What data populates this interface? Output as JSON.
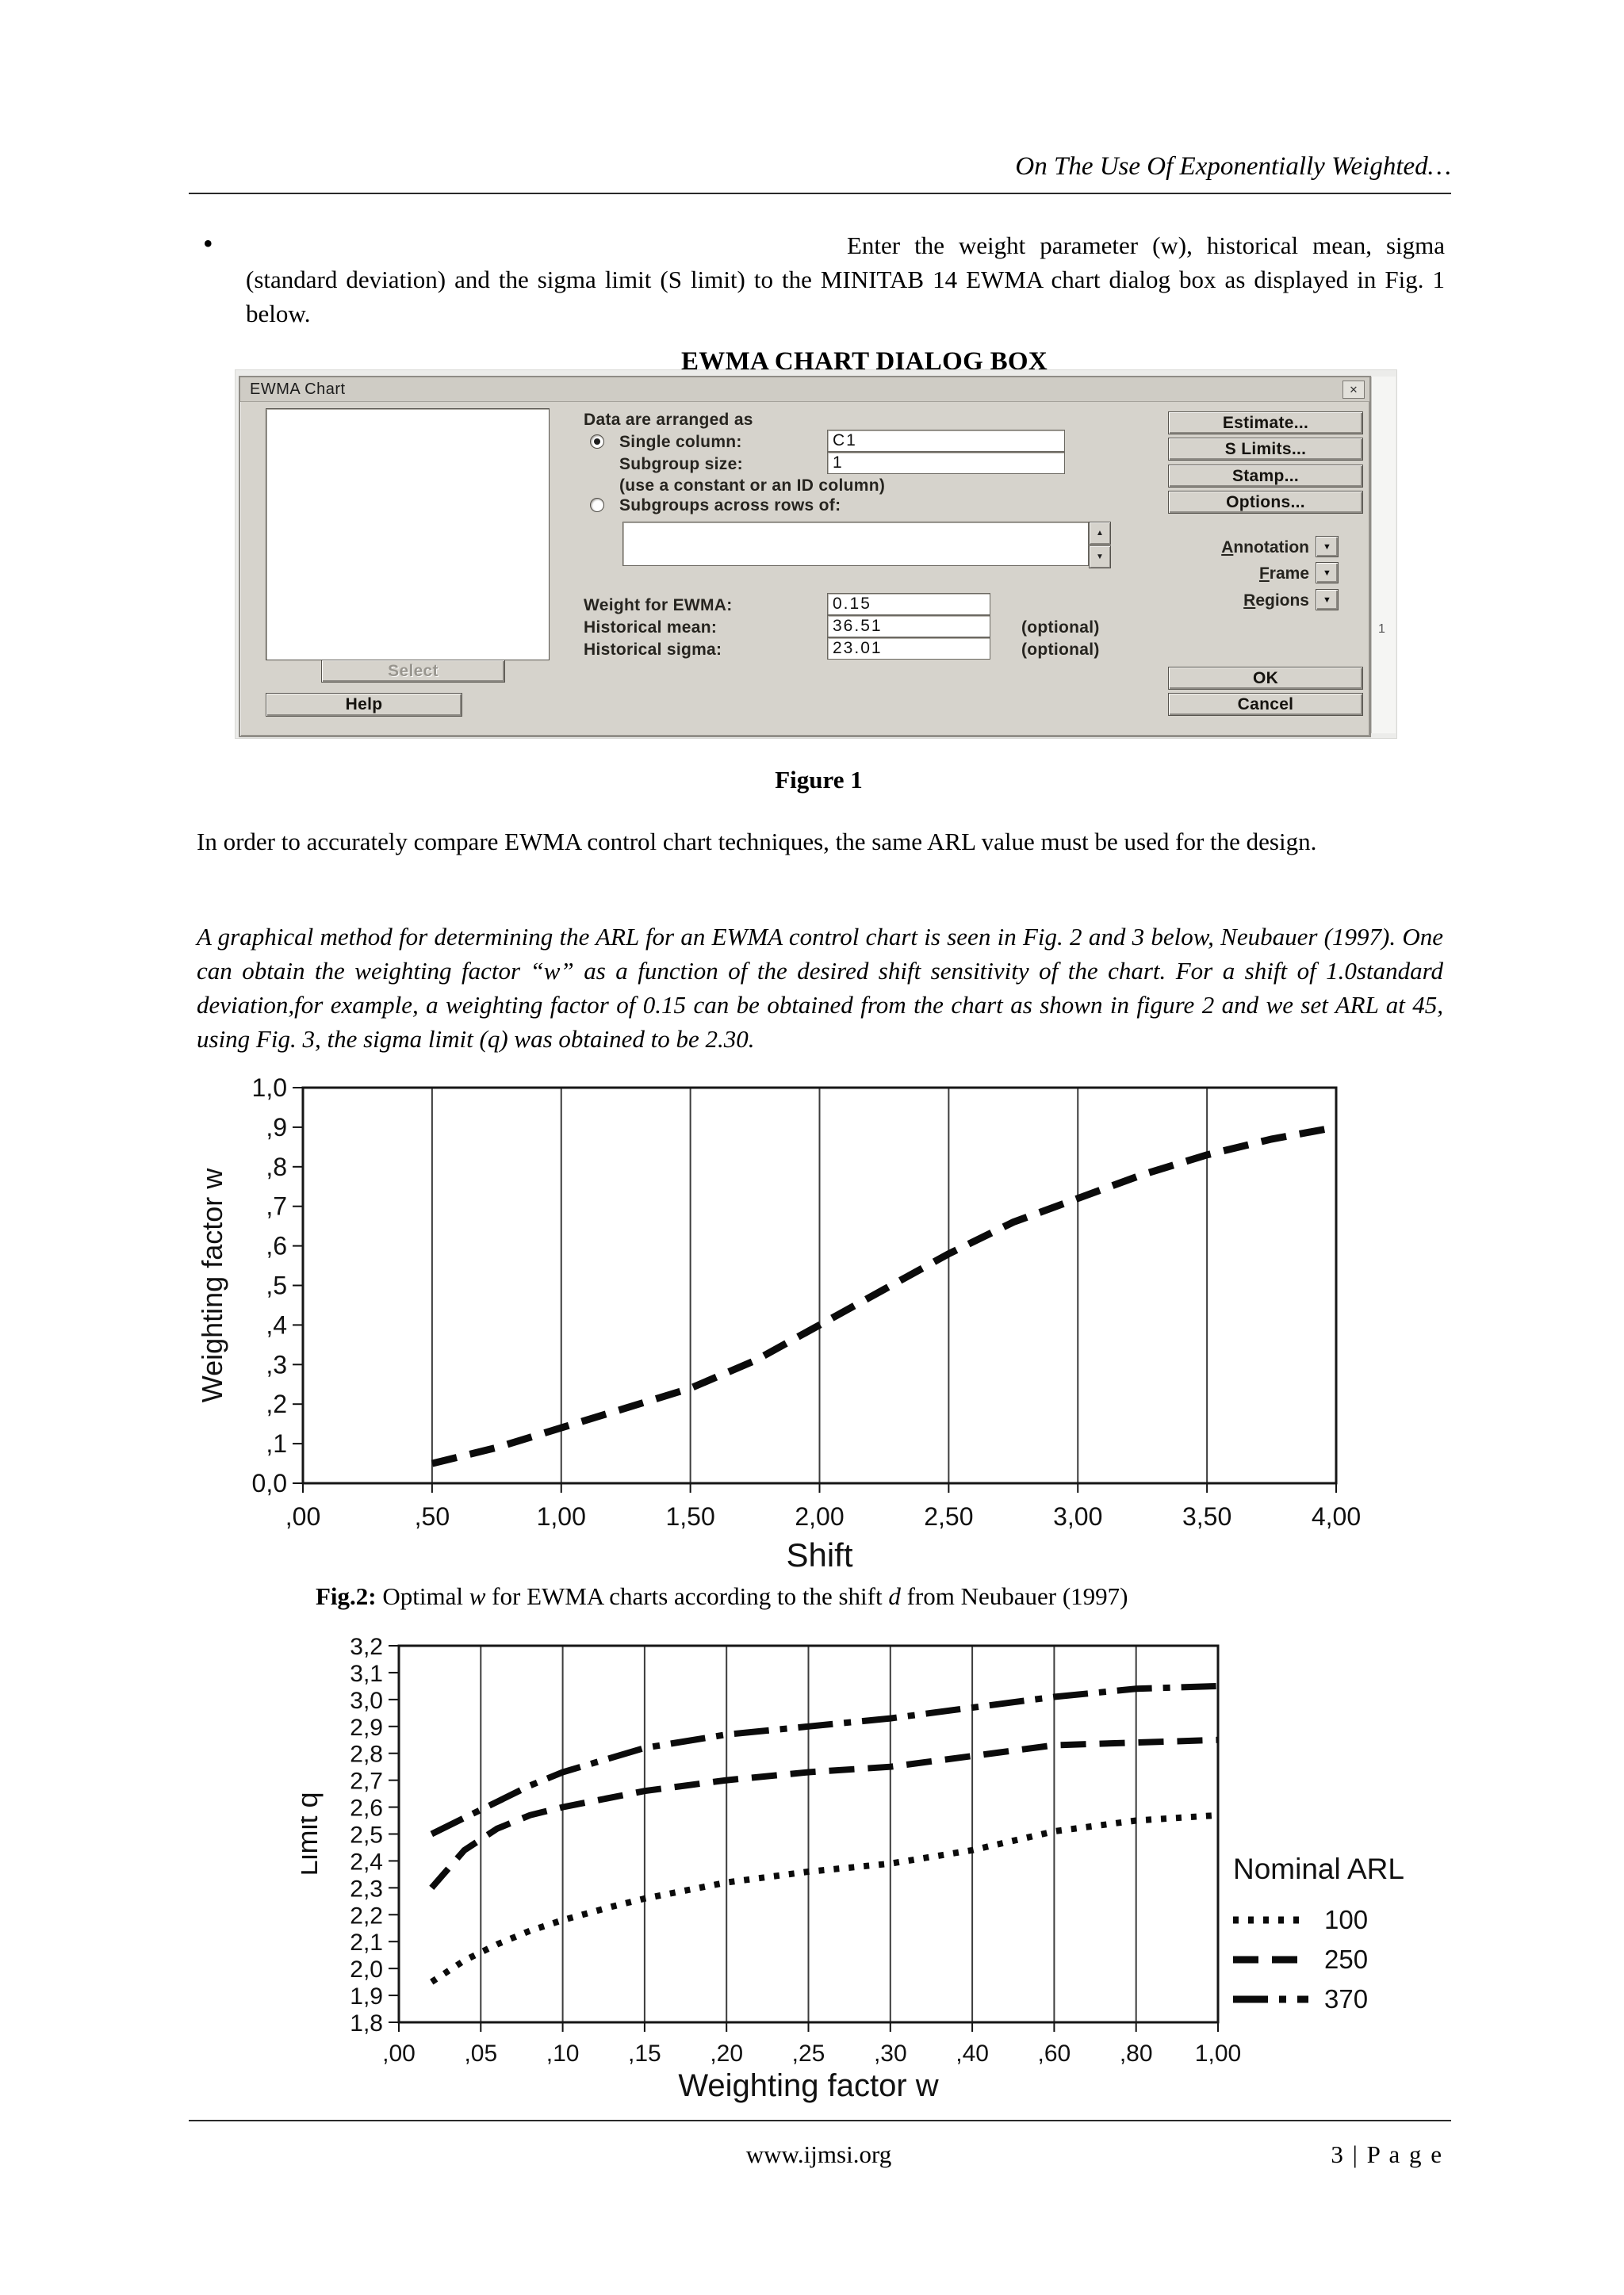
{
  "page": {
    "running_header": "On The Use Of Exponentially Weighted…",
    "footer": {
      "website": "www.ijmsi.org",
      "page_number": "3 | P a g e"
    }
  },
  "icons": {
    "close": "✕",
    "dropdown_arrow": "▼",
    "spinner_up": "▲",
    "spinner_down": "▼",
    "bullet": "•"
  },
  "intro_bullet": {
    "text": "Enter the weight parameter (w), historical mean, sigma (standard deviation) and the sigma limit (S limit) to the MINITAB 14 EWMA chart dialog box as displayed in Fig. 1 below."
  },
  "section_heading": "EWMA CHART DIALOG BOX",
  "figure1_caption": "Figure 1",
  "paragraphs": {
    "arl_note": "In order to accurately compare EWMA control chart techniques, the same ARL value must be used for the design.",
    "graphical_method": "A graphical method for determining the ARL for an EWMA control chart is seen in Fig. 2 and 3 below, Neubauer (1997). One can obtain the weighting factor “w” as a function of the desired shift sensitivity of the chart. For a shift of 1.0standard deviation,for example, a weighting factor of 0.15 can be obtained from the chart as shown in figure 2 and we set ARL at 45, using Fig. 3, the sigma limit (q) was obtained to be 2.30."
  },
  "fig2_caption": {
    "prefix": "Fig.2:",
    "part1": " Optimal ",
    "w_italic": "w",
    "part2": " for EWMA charts according to the shift ",
    "d_italic": "d",
    "part3": " from Neubauer (1997)"
  },
  "dialog": {
    "title": "EWMA Chart",
    "data_arranged_label": "Data are arranged as",
    "single_column_label": "Single column:",
    "single_column_value": "C1",
    "subgroup_size_label": "Subgroup size:",
    "subgroup_size_value": "1",
    "constant_hint": "(use a constant or an ID column)",
    "subgroups_rows_label": "Subgroups across rows of:",
    "subgroups_rows_value": "",
    "weight_label": "Weight for EWMA:",
    "weight_value": "0.15",
    "mean_label": "Historical mean:",
    "mean_value": "36.51",
    "sigma_label": "Historical sigma:",
    "sigma_value": "23.01",
    "optional_label": "(optional)",
    "buttons": {
      "estimate": "Estimate...",
      "s_limits": "S Limits...",
      "stamp": "Stamp...",
      "options": "Options...",
      "select": "Select",
      "help": "Help",
      "ok": "OK",
      "cancel": "Cancel"
    },
    "dropdowns": [
      {
        "label": "Annotation"
      },
      {
        "label": "Frame"
      },
      {
        "label": "Regions"
      }
    ]
  },
  "dialog_backdrop": {
    "worksheet_text": "1"
  },
  "chart_data": [
    {
      "id": "fig2",
      "type": "line",
      "title": "",
      "xlabel": "Shift",
      "ylabel": "Weighting factor w",
      "xlim": [
        0,
        4
      ],
      "ylim": [
        0,
        1
      ],
      "grid": "vertical",
      "x_ticks": [
        0,
        0.5,
        1.0,
        1.5,
        2.0,
        2.5,
        3.0,
        3.5,
        4.0
      ],
      "x_tick_labels": [
        ",00",
        ",50",
        "1,00",
        "1,50",
        "2,00",
        "2,50",
        "3,00",
        "3,50",
        "4,00"
      ],
      "y_ticks": [
        1.0,
        0.9,
        0.8,
        0.7,
        0.6,
        0.5,
        0.4,
        0.3,
        0.2,
        0.1,
        0.0
      ],
      "y_tick_labels": [
        "1,0",
        ",9",
        ",8",
        ",7",
        ",6",
        ",5",
        ",4",
        ",3",
        ",2",
        ",1",
        "0,0"
      ],
      "series": [
        {
          "name": "optimal_w",
          "style": "dashed",
          "x": [
            0.5,
            0.75,
            1.0,
            1.25,
            1.5,
            1.75,
            2.0,
            2.25,
            2.5,
            2.75,
            3.0,
            3.25,
            3.5,
            3.75,
            4.0
          ],
          "y": [
            0.05,
            0.09,
            0.14,
            0.19,
            0.24,
            0.31,
            0.4,
            0.49,
            0.58,
            0.66,
            0.72,
            0.78,
            0.83,
            0.87,
            0.9
          ]
        }
      ]
    },
    {
      "id": "fig3",
      "type": "line",
      "title": "",
      "xlabel": "Weighting factor  w",
      "ylabel": "Limit q",
      "x_scale": "piecewise-ticks",
      "ylim": [
        1.8,
        3.2
      ],
      "grid": "vertical",
      "x_ticks": [
        0,
        0.05,
        0.1,
        0.15,
        0.2,
        0.25,
        0.3,
        0.4,
        0.6,
        0.8,
        1.0
      ],
      "x_tick_labels": [
        ",00",
        ",05",
        ",10",
        ",15",
        ",20",
        ",25",
        ",30",
        ",40",
        ",60",
        ",80",
        "1,00"
      ],
      "y_ticks": [
        3.2,
        3.1,
        3.0,
        2.9,
        2.8,
        2.7,
        2.6,
        2.5,
        2.4,
        2.3,
        2.2,
        2.1,
        2.0,
        1.9,
        1.8
      ],
      "y_tick_labels": [
        "3,2",
        "3,1",
        "3,0",
        "2,9",
        "2,8",
        "2,7",
        "2,6",
        "2,5",
        "2,4",
        "2,3",
        "2,2",
        "2,1",
        "2,0",
        "1,9",
        "1,8"
      ],
      "legend": {
        "title": "Nominal ARL",
        "position": "right"
      },
      "series": [
        {
          "name": "100",
          "style": "dotted",
          "x": [
            0.02,
            0.04,
            0.06,
            0.08,
            0.1,
            0.13,
            0.15,
            0.2,
            0.25,
            0.3,
            0.4,
            0.6,
            0.8,
            1.0
          ],
          "y": [
            1.95,
            2.03,
            2.09,
            2.14,
            2.18,
            2.23,
            2.26,
            2.32,
            2.36,
            2.39,
            2.44,
            2.51,
            2.55,
            2.57
          ]
        },
        {
          "name": "250",
          "style": "dashed",
          "x": [
            0.02,
            0.04,
            0.06,
            0.08,
            0.1,
            0.15,
            0.2,
            0.25,
            0.3,
            0.4,
            0.6,
            0.8,
            1.0
          ],
          "y": [
            2.3,
            2.44,
            2.52,
            2.57,
            2.6,
            2.66,
            2.7,
            2.73,
            2.75,
            2.79,
            2.83,
            2.84,
            2.85
          ]
        },
        {
          "name": "370",
          "style": "dashdot",
          "x": [
            0.02,
            0.04,
            0.06,
            0.08,
            0.1,
            0.15,
            0.2,
            0.25,
            0.3,
            0.4,
            0.6,
            0.8,
            1.0
          ],
          "y": [
            2.5,
            2.56,
            2.62,
            2.68,
            2.73,
            2.82,
            2.87,
            2.9,
            2.93,
            2.97,
            3.01,
            3.04,
            3.05
          ]
        }
      ]
    }
  ]
}
